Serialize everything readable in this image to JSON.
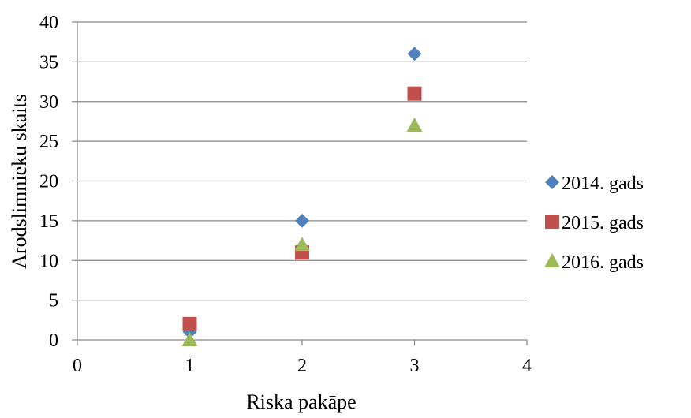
{
  "chart_data": {
    "type": "scatter",
    "title": "",
    "xlabel": "Riska pakāpe",
    "ylabel": "Arodslimnieku skaits",
    "xlim": [
      0,
      4
    ],
    "ylim": [
      0,
      40
    ],
    "xticks": [
      0,
      1,
      2,
      3,
      4
    ],
    "yticks": [
      0,
      5,
      10,
      15,
      20,
      25,
      30,
      35,
      40
    ],
    "grid": "horizontal",
    "legend_position": "right",
    "series": [
      {
        "name": "2014. gads",
        "marker": "diamond",
        "color": "#4F81BD",
        "x": [
          1,
          2,
          3
        ],
        "y": [
          1,
          15,
          36
        ]
      },
      {
        "name": "2015. gads",
        "marker": "square",
        "color": "#C0504D",
        "x": [
          1,
          2,
          3
        ],
        "y": [
          2,
          11,
          31
        ]
      },
      {
        "name": "2016. gads",
        "marker": "triangle",
        "color": "#9BBB59",
        "x": [
          1,
          2,
          3
        ],
        "y": [
          0,
          12,
          27
        ]
      }
    ]
  }
}
